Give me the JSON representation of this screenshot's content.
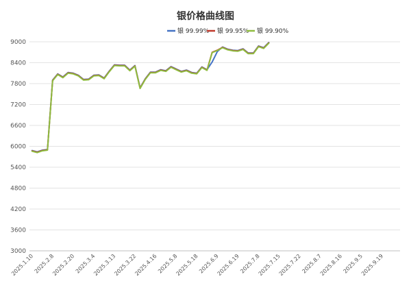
{
  "chart_data": {
    "type": "line",
    "title": "银价格曲线图",
    "xlabel": "",
    "ylabel": "",
    "ylim": [
      3000,
      9000
    ],
    "yticks": [
      3000,
      3600,
      4200,
      4800,
      5400,
      6000,
      6600,
      7200,
      7800,
      8400,
      9000
    ],
    "grid": "horizontal",
    "legend_position": "top-right",
    "x_tick_labels": [
      "2025.1.10",
      "2025.2.8",
      "2025.2.20",
      "2025.3.4",
      "2025.3.13",
      "2025.3.22",
      "2025.4.16",
      "2025.5.8",
      "2025.5.18",
      "2025.6.9",
      "2025.6.19",
      "2025.7.8",
      "2025.7.15",
      "2025.7.22",
      "2025.8.7",
      "2025.8.16",
      "2025.9.5",
      "2025.9.19"
    ],
    "x_tick_index": [
      0,
      4,
      8,
      12,
      16,
      20,
      24,
      28,
      32,
      36,
      40,
      44,
      48,
      52,
      56,
      60,
      64,
      68
    ],
    "series": [
      {
        "name": "银 99.99%",
        "color": "#4472c4",
        "values": [
          5880,
          5840,
          5890,
          5910,
          7900,
          8080,
          7990,
          8120,
          8100,
          8040,
          7920,
          7930,
          8040,
          8050,
          7960,
          8160,
          8340,
          8330,
          8330,
          8190,
          8320,
          7680,
          7940,
          8130,
          8130,
          8200,
          8170,
          8290,
          8220,
          8150,
          8190,
          8120,
          8100,
          8280,
          8200,
          8420,
          8720,
          8850,
          8790,
          8760,
          8750,
          8800,
          8680,
          8680,
          8880,
          8830,
          8980
        ]
      },
      {
        "name": "银 99.95%",
        "color": "#c0392b",
        "values": [
          5870,
          5830,
          5880,
          5900,
          7890,
          8070,
          7980,
          8110,
          8090,
          8030,
          7910,
          7920,
          8030,
          8040,
          7950,
          8150,
          8330,
          8320,
          8320,
          8180,
          8310,
          7670,
          7930,
          8120,
          8120,
          8190,
          8160,
          8280,
          8210,
          8140,
          8180,
          8110,
          8090,
          8270,
          8190,
          8700,
          8760,
          8840,
          8780,
          8750,
          8740,
          8790,
          8670,
          8670,
          8870,
          8820,
          8970
        ]
      },
      {
        "name": "银 99.90%",
        "color": "#8fbc3f",
        "values": [
          5860,
          5820,
          5870,
          5890,
          7880,
          8060,
          7970,
          8100,
          8080,
          8020,
          7900,
          7910,
          8020,
          8030,
          7940,
          8140,
          8320,
          8310,
          8310,
          8170,
          8300,
          7660,
          7920,
          8110,
          8110,
          8180,
          8150,
          8270,
          8200,
          8130,
          8170,
          8100,
          8080,
          8260,
          8180,
          8690,
          8750,
          8830,
          8770,
          8740,
          8730,
          8780,
          8660,
          8660,
          8860,
          8810,
          8960
        ]
      }
    ]
  }
}
